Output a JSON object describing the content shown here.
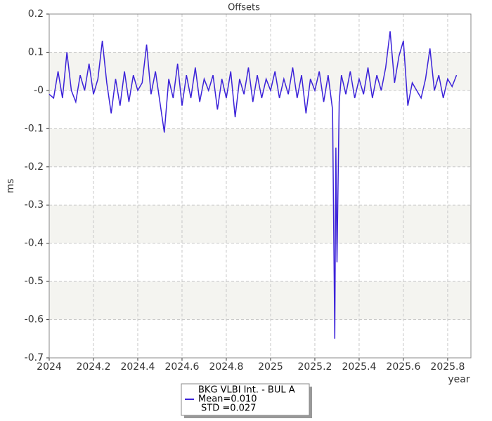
{
  "chart_data": {
    "type": "line",
    "title": "Offsets",
    "x_label": "year",
    "y_label": "ms",
    "xlim": [
      2024,
      2025.905
    ],
    "ylim": [
      -0.7,
      0.2
    ],
    "xticks": [
      2024,
      2024.2,
      2024.4,
      2024.6,
      2024.8,
      2025,
      2025.2,
      2025.4,
      2025.6,
      2025.8
    ],
    "yticks": [
      0.2,
      0.1,
      {
        "value": 0,
        "label": "-0"
      },
      -0.1,
      -0.2,
      -0.3,
      -0.4,
      -0.5,
      -0.6,
      -0.7
    ],
    "grid": true,
    "legend_position": "bottom",
    "legend_lines": [
      "Mean=0.010",
      "STD =0.027"
    ],
    "x": [
      2024.0,
      2024.02,
      2024.04,
      2024.06,
      2024.08,
      2024.1,
      2024.12,
      2024.14,
      2024.16,
      2024.18,
      2024.2,
      2024.22,
      2024.24,
      2024.26,
      2024.28,
      2024.3,
      2024.32,
      2024.34,
      2024.36,
      2024.38,
      2024.4,
      2024.42,
      2024.44,
      2024.46,
      2024.48,
      2024.5,
      2024.52,
      2024.54,
      2024.56,
      2024.58,
      2024.6,
      2024.62,
      2024.64,
      2024.66,
      2024.68,
      2024.7,
      2024.72,
      2024.74,
      2024.76,
      2024.78,
      2024.8,
      2024.82,
      2024.84,
      2024.86,
      2024.88,
      2024.9,
      2024.92,
      2024.94,
      2024.96,
      2024.98,
      2025.0,
      2025.02,
      2025.04,
      2025.06,
      2025.08,
      2025.1,
      2025.12,
      2025.14,
      2025.16,
      2025.18,
      2025.2,
      2025.22,
      2025.24,
      2025.26,
      2025.28,
      2025.29,
      2025.295,
      2025.3,
      2025.31,
      2025.32,
      2025.34,
      2025.36,
      2025.38,
      2025.4,
      2025.42,
      2025.44,
      2025.46,
      2025.48,
      2025.5,
      2025.52,
      2025.54,
      2025.56,
      2025.58,
      2025.6,
      2025.62,
      2025.64,
      2025.66,
      2025.68,
      2025.7,
      2025.72,
      2025.74,
      2025.76,
      2025.78,
      2025.8,
      2025.82,
      2025.84
    ],
    "series": [
      {
        "name": "BKG VLBI Int. - BUL A",
        "color": "#3b22d9",
        "values": [
          -0.01,
          -0.02,
          0.05,
          -0.02,
          0.1,
          0.0,
          -0.03,
          0.04,
          0.0,
          0.07,
          -0.01,
          0.03,
          0.13,
          0.02,
          -0.06,
          0.03,
          -0.04,
          0.05,
          -0.03,
          0.04,
          0.0,
          0.02,
          0.12,
          -0.01,
          0.05,
          -0.03,
          -0.11,
          0.03,
          -0.02,
          0.07,
          -0.04,
          0.04,
          -0.02,
          0.06,
          -0.03,
          0.03,
          0.0,
          0.04,
          -0.05,
          0.03,
          -0.02,
          0.05,
          -0.07,
          0.03,
          -0.01,
          0.06,
          -0.03,
          0.04,
          -0.02,
          0.03,
          0.0,
          0.05,
          -0.02,
          0.03,
          -0.01,
          0.06,
          -0.02,
          0.04,
          -0.06,
          0.03,
          0.0,
          0.05,
          -0.03,
          0.04,
          -0.05,
          -0.65,
          -0.15,
          -0.45,
          -0.03,
          0.04,
          -0.01,
          0.05,
          -0.02,
          0.03,
          -0.01,
          0.06,
          -0.02,
          0.04,
          0.0,
          0.06,
          0.155,
          0.02,
          0.09,
          0.13,
          -0.04,
          0.02,
          0.0,
          -0.02,
          0.03,
          0.11,
          0.0,
          0.04,
          -0.02,
          0.03,
          0.01,
          0.04
        ]
      }
    ]
  }
}
